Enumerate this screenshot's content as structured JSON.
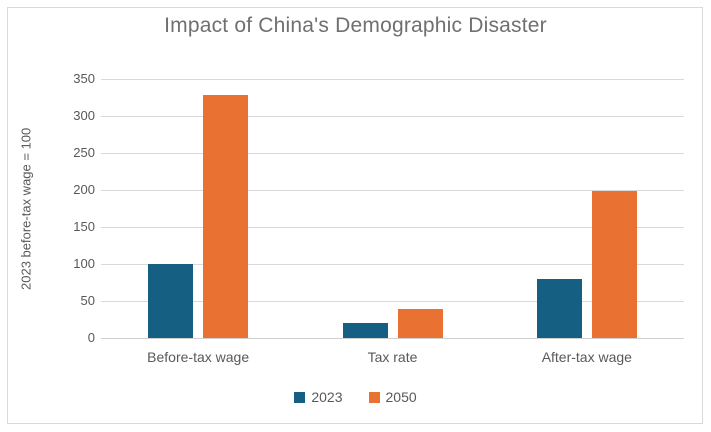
{
  "chart_data": {
    "type": "bar",
    "title": "Impact of China's Demographic Disaster",
    "xlabel": "",
    "ylabel": "2023 before-tax wage = 100",
    "categories": [
      "Before-tax wage",
      "Tax rate",
      "After-tax wage"
    ],
    "series": [
      {
        "name": "2023",
        "color": "#156082",
        "values": [
          100,
          20,
          80
        ]
      },
      {
        "name": "2050",
        "color": "#E97132",
        "values": [
          328,
          39,
          199
        ]
      }
    ],
    "ylim": [
      0,
      350
    ],
    "yticks": [
      0,
      50,
      100,
      150,
      200,
      250,
      300,
      350
    ],
    "grid": true,
    "legend_position": "bottom"
  },
  "colors": {
    "gridline": "#d9d9d9",
    "border": "#d9d9d9",
    "text": "#595959",
    "title": "#707070",
    "background": "#ffffff"
  }
}
